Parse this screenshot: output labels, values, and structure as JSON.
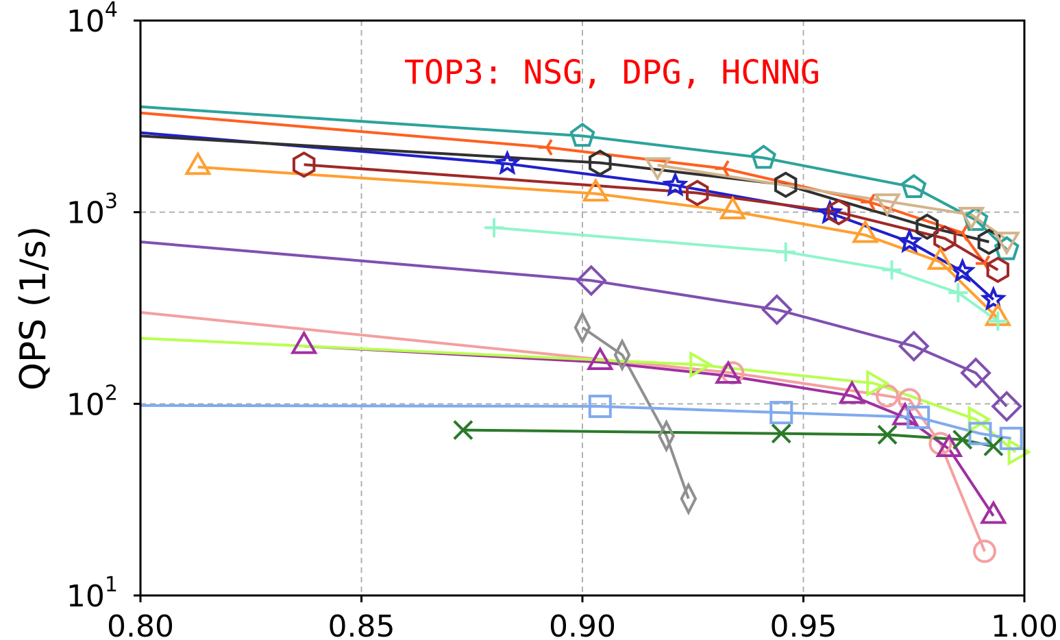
{
  "chart_data": {
    "type": "line",
    "title": "",
    "xlabel": "",
    "ylabel": "QPS (1/s)",
    "xlim": [
      0.8,
      1.0
    ],
    "ylim": [
      10,
      10000
    ],
    "yscale": "log",
    "grid": true,
    "xticks": [
      "0.80",
      "0.85",
      "0.90",
      "0.95",
      "1.00"
    ],
    "yticks": [
      {
        "base": "10",
        "exp": "1",
        "value": 10
      },
      {
        "base": "10",
        "exp": "2",
        "value": 100
      },
      {
        "base": "10",
        "exp": "3",
        "value": 1000
      },
      {
        "base": "10",
        "exp": "4",
        "value": 10000
      }
    ],
    "annotation": {
      "text": "TOP3: NSG, DPG, HCNNG",
      "color": "#ff0000"
    },
    "series": [
      {
        "color": "#2ca39b",
        "marker": "pentagon",
        "points": [
          [
            0.8,
            3550
          ],
          [
            0.9,
            2500
          ],
          [
            0.941,
            1920
          ],
          [
            0.975,
            1350
          ],
          [
            0.989,
            910
          ],
          [
            0.996,
            640
          ]
        ]
      },
      {
        "color": "#ff6020",
        "marker": "tri-left",
        "points": [
          [
            0.8,
            3300
          ],
          [
            0.892,
            2180
          ],
          [
            0.932,
            1690
          ],
          [
            0.965,
            1130
          ],
          [
            0.986,
            780
          ],
          [
            0.991,
            540
          ]
        ]
      },
      {
        "color": "#2020cc",
        "marker": "star",
        "points": [
          [
            0.8,
            2600
          ],
          [
            0.883,
            1790
          ],
          [
            0.921,
            1380
          ],
          [
            0.956,
            990
          ],
          [
            0.974,
            700
          ],
          [
            0.986,
            490
          ],
          [
            0.993,
            350
          ]
        ]
      },
      {
        "color": "#303030",
        "marker": "hexagon",
        "points": [
          [
            0.8,
            2500
          ],
          [
            0.904,
            1810
          ],
          [
            0.946,
            1390
          ],
          [
            0.978,
            840
          ],
          [
            0.992,
            700
          ]
        ]
      },
      {
        "color": "#d2b48c",
        "marker": "triangle-down",
        "points": [
          [
            0.917,
            1760
          ],
          [
            0.969,
            1140
          ],
          [
            0.988,
            970
          ],
          [
            0.996,
            720
          ]
        ]
      },
      {
        "color": "#a02828",
        "marker": "hexagon",
        "points": [
          [
            0.837,
            1770
          ],
          [
            0.926,
            1260
          ],
          [
            0.958,
            1000
          ],
          [
            0.982,
            730
          ],
          [
            0.994,
            500
          ]
        ]
      },
      {
        "color": "#ff9f30",
        "marker": "triangle-up",
        "points": [
          [
            0.813,
            1720
          ],
          [
            0.903,
            1250
          ],
          [
            0.934,
            1010
          ],
          [
            0.964,
            760
          ],
          [
            0.981,
            550
          ],
          [
            0.994,
            280
          ]
        ]
      },
      {
        "color": "#90f5cc",
        "marker": "plus",
        "points": [
          [
            0.88,
            830
          ],
          [
            0.946,
            620
          ],
          [
            0.97,
            500
          ],
          [
            0.985,
            380
          ],
          [
            0.994,
            270
          ]
        ]
      },
      {
        "color": "#8050b0",
        "marker": "diamond",
        "points": [
          [
            0.8,
            700
          ],
          [
            0.902,
            440
          ],
          [
            0.944,
            310
          ],
          [
            0.975,
            200
          ],
          [
            0.989,
            145
          ],
          [
            0.996,
            97
          ]
        ]
      },
      {
        "color": "#909090",
        "marker": "thin-diamond",
        "points": [
          [
            0.9,
            250
          ],
          [
            0.909,
            180
          ],
          [
            0.919,
            68
          ],
          [
            0.924,
            32
          ]
        ]
      },
      {
        "color": "#f4a0a0",
        "marker": "circle",
        "points": [
          [
            0.8,
            300
          ],
          [
            0.934,
            145
          ],
          [
            0.969,
            110
          ],
          [
            0.974,
            105
          ],
          [
            0.981,
            62
          ],
          [
            0.991,
            17
          ]
        ]
      },
      {
        "color": "#a030a0",
        "marker": "triangle-up",
        "points": [
          [
            0.837,
            200
          ],
          [
            0.904,
            165
          ],
          [
            0.933,
            140
          ],
          [
            0.961,
            110
          ],
          [
            0.973,
            85
          ],
          [
            0.983,
            58
          ],
          [
            0.993,
            26
          ]
        ]
      },
      {
        "color": "#b8ff50",
        "marker": "triangle-right",
        "points": [
          [
            0.8,
            220
          ],
          [
            0.926,
            160
          ],
          [
            0.966,
            128
          ],
          [
            0.989,
            83
          ],
          [
            0.998,
            56
          ]
        ]
      },
      {
        "color": "#80aaee",
        "marker": "square",
        "points": [
          [
            0.8,
            98
          ],
          [
            0.904,
            97
          ],
          [
            0.945,
            90
          ],
          [
            0.976,
            85
          ],
          [
            0.99,
            70
          ],
          [
            0.997,
            66
          ]
        ]
      },
      {
        "color": "#2a7a2a",
        "marker": "x",
        "points": [
          [
            0.873,
            73
          ],
          [
            0.945,
            70
          ],
          [
            0.969,
            69
          ],
          [
            0.986,
            65
          ],
          [
            0.993,
            60
          ]
        ]
      }
    ]
  }
}
